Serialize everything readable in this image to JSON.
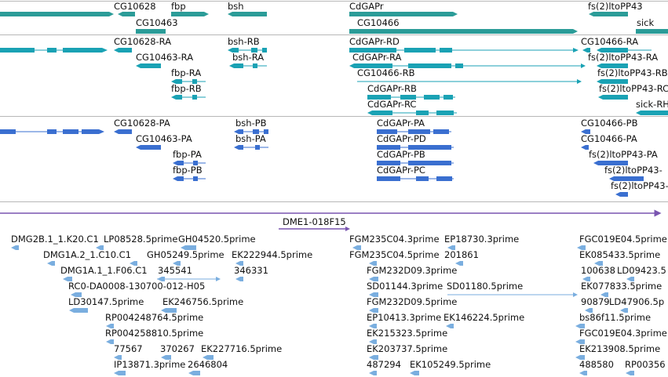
{
  "colors": {
    "gene": "#2b9c98",
    "transcript": "#1aa2b4",
    "protein": "#3a6fd0",
    "scaffold": "#7a55b0",
    "clone": "#7aaedf",
    "separator": "#b8b8b8"
  },
  "tracks": {
    "genes": {
      "labels": [
        "CG10628",
        "fbp",
        "bsh",
        "CdGAPr",
        "fs(2)ltoPP43",
        "CG10463",
        "CG10466",
        "sick"
      ]
    },
    "transcripts": {
      "labels": [
        "CG10628-RA",
        "bsh-RB",
        "CdGAPr-RD",
        "CG10466-RA",
        "CG10463-RA",
        "bsh-RA",
        "CdGAPr-RA",
        "fs(2)ltoPP43-RA",
        "fbp-RA",
        "CG10466-RB",
        "fs(2)ltoPP43-RB",
        "fbp-RB",
        "CdGAPr-RB",
        "fs(2)ltoPP43-RC",
        "CdGAPr-RC",
        "sick-RH"
      ]
    },
    "proteins": {
      "labels": [
        "CG10628-PA",
        "bsh-PB",
        "CdGAPr-PA",
        "CG10466-PB",
        "CG10463-PA",
        "bsh-PA",
        "CdGAPr-PD",
        "CG10466-PA",
        "fbp-PA",
        "CdGAPr-PB",
        "fs(2)ltoPP43-PA",
        "fbp-PB",
        "CdGAPr-PC",
        "fs(2)ltoPP43-",
        "fs(2)ltoPP43-"
      ]
    },
    "scaffold": {
      "label": "DME1-018F15"
    },
    "clones": {
      "labels": [
        "DMG2B.1_1.K20.C1",
        "LP08528.5prime",
        "GH04520.5prime",
        "FGM235C04.3prime",
        "EP18730.3prime",
        "FGC019E04.5prime",
        "DMG1A.2_1.C10.C1",
        "GH05249.5prime",
        "EK222944.5prime",
        "FGM235C04.5prime",
        "201861",
        "EK085433.5prime",
        "DMG1A.1_1.F06.C1",
        "345541",
        "346331",
        "FGM232D09.3prime",
        "100638",
        "LD09423.5",
        "RC0-DA0008-130700-012-H05",
        "SD01144.3prime",
        "SD01180.5prime",
        "EK077833.5prime",
        "LD30147.5prime",
        "EK246756.5prime",
        "FGM232D09.5prime",
        "90879",
        "LD47906.5p",
        "RP004248764.5prime",
        "EP10413.3prime",
        "EK146224.5prime",
        "bs86f11.5prime",
        "RP004258810.5prime",
        "EK215323.5prime",
        "FGC019E04.3prime",
        "77567",
        "370267",
        "EK227716.5prime",
        "EK203737.5prime",
        "EK213908.5prime",
        "IP13871.3prime",
        "2646804",
        "487294",
        "EK105249.5prime",
        "488580",
        "RP00356"
      ]
    }
  }
}
